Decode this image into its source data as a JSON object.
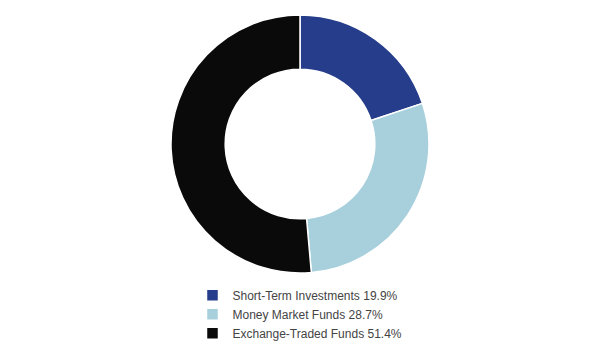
{
  "chart_data": {
    "type": "pie",
    "categories": [
      "Short-Term Investments 19.9%",
      "Money Market Funds 28.7%",
      "Exchange-Traded Funds 51.4%"
    ],
    "values": [
      19.9,
      28.7,
      51.4
    ],
    "colors": [
      "#253d8a",
      "#a8d0dc",
      "#0a0a0a"
    ],
    "legend": "bottom"
  }
}
